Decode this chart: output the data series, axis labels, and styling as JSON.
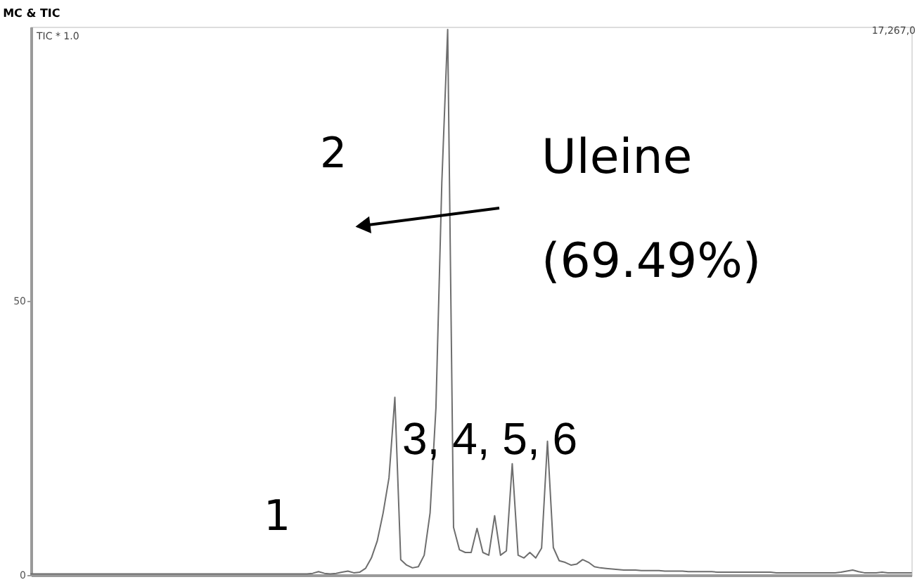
{
  "chart_data": {
    "type": "line",
    "title": "MC & TIC",
    "categories": [
      null,
      null,
      null,
      null,
      null,
      null,
      null,
      null,
      null,
      null,
      null,
      null,
      null,
      null,
      null,
      null,
      null,
      null,
      null,
      null,
      null,
      null,
      null,
      null,
      null,
      null,
      null,
      null,
      null,
      null,
      null,
      null,
      null,
      null,
      null,
      null,
      null,
      null,
      null,
      null,
      null,
      null,
      null,
      null,
      null,
      null,
      null,
      null,
      null,
      null,
      null,
      null,
      null,
      null,
      null,
      null,
      null,
      null,
      null,
      null,
      null,
      null,
      null,
      null,
      null,
      null,
      null,
      null,
      null,
      null,
      null,
      null,
      null,
      null,
      null,
      null,
      null,
      null,
      null,
      null,
      null,
      null,
      null,
      null,
      null,
      null,
      null,
      null,
      null,
      null,
      null,
      null,
      null,
      null,
      null,
      null,
      null,
      null,
      null,
      null,
      null,
      null,
      null,
      null,
      null,
      null,
      null,
      null,
      null,
      null,
      null,
      null,
      null,
      null,
      null,
      null,
      null,
      null,
      null,
      null,
      null,
      null,
      null,
      null,
      null,
      null,
      null,
      null,
      null,
      null,
      null,
      null,
      null,
      null,
      null,
      null,
      null,
      null,
      null,
      null,
      null,
      null,
      null,
      null,
      null,
      null,
      null,
      null,
      null,
      null,
      null
    ],
    "values": [
      0.2,
      0.2,
      0.2,
      0.2,
      0.2,
      0.2,
      0.2,
      0.2,
      0.2,
      0.2,
      0.2,
      0.2,
      0.2,
      0.2,
      0.2,
      0.2,
      0.2,
      0.2,
      0.2,
      0.2,
      0.2,
      0.2,
      0.2,
      0.2,
      0.2,
      0.2,
      0.2,
      0.2,
      0.2,
      0.2,
      0.2,
      0.2,
      0.2,
      0.2,
      0.2,
      0.2,
      0.2,
      0.2,
      0.2,
      0.2,
      0.2,
      0.2,
      0.2,
      0.2,
      0.2,
      0.2,
      0.2,
      0.2,
      0.3,
      0.6,
      0.3,
      0.2,
      0.3,
      0.5,
      0.7,
      0.4,
      0.5,
      1.2,
      3.1,
      6.2,
      11.3,
      17.7,
      32.4,
      2.8,
      1.8,
      1.3,
      1.5,
      3.6,
      11.3,
      30.5,
      71.5,
      99.5,
      8.7,
      4.6,
      4.1,
      4.1,
      8.5,
      4.1,
      3.6,
      10.8,
      3.6,
      4.4,
      20.3,
      3.6,
      3.1,
      4.1,
      3.1,
      4.9,
      24.4,
      5.0,
      2.6,
      2.3,
      1.8,
      2.0,
      2.8,
      2.3,
      1.5,
      1.3,
      1.2,
      1.1,
      1.0,
      0.9,
      0.9,
      0.9,
      0.8,
      0.8,
      0.8,
      0.8,
      0.7,
      0.7,
      0.7,
      0.7,
      0.6,
      0.6,
      0.6,
      0.6,
      0.6,
      0.5,
      0.5,
      0.5,
      0.5,
      0.5,
      0.5,
      0.5,
      0.5,
      0.5,
      0.5,
      0.4,
      0.4,
      0.4,
      0.4,
      0.4,
      0.4,
      0.4,
      0.4,
      0.4,
      0.4,
      0.4,
      0.5,
      0.7,
      0.9,
      0.6,
      0.4,
      0.4,
      0.4,
      0.5,
      0.4,
      0.4,
      0.4,
      0.4,
      0.4
    ],
    "color": "#6e6e6e",
    "ylim": [
      0,
      100
    ],
    "yticks": [
      0,
      50
    ],
    "tick_labels": "y",
    "annotations": [
      "TIC * 1.0",
      "17,267,0",
      "2",
      "Uleine (69.49%)",
      "1",
      "3, 4, 5, 6"
    ]
  }
}
